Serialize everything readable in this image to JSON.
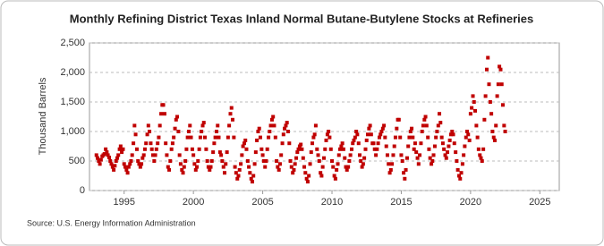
{
  "chart_data": {
    "type": "scatter",
    "title": "Monthly Refining District Texas Inland Normal Butane-Butylene Stocks at Refineries",
    "y_label": "Thousand Barrels",
    "source": "Source: U.S. Energy Information Administration",
    "color": "#c00000",
    "grid": true,
    "xlim": [
      1992.5,
      2026.4
    ],
    "ylim": [
      0,
      2500
    ],
    "xticks": [
      1995,
      2000,
      2005,
      2010,
      2015,
      2020,
      2025
    ],
    "yticks": [
      0,
      500,
      {
        "value": 1000,
        "label": "1,000"
      },
      {
        "value": 1500,
        "label": "1,500"
      },
      {
        "value": 2000,
        "label": "2,000"
      },
      {
        "value": 2500,
        "label": "2,500"
      }
    ],
    "x": [
      1993.0,
      1993.08,
      1993.17,
      1993.25,
      1993.33,
      1993.42,
      1993.5,
      1993.58,
      1993.67,
      1993.75,
      1993.83,
      1993.92,
      1994.0,
      1994.08,
      1994.17,
      1994.25,
      1994.33,
      1994.42,
      1994.5,
      1994.58,
      1994.67,
      1994.75,
      1994.83,
      1994.92,
      1995.0,
      1995.08,
      1995.17,
      1995.25,
      1995.33,
      1995.42,
      1995.5,
      1995.58,
      1995.67,
      1995.75,
      1995.83,
      1995.92,
      1996.0,
      1996.08,
      1996.17,
      1996.25,
      1996.33,
      1996.42,
      1996.5,
      1996.58,
      1996.67,
      1996.75,
      1996.83,
      1996.92,
      1997.0,
      1997.08,
      1997.17,
      1997.25,
      1997.33,
      1997.42,
      1997.5,
      1997.58,
      1997.67,
      1997.75,
      1997.83,
      1997.92,
      1998.0,
      1998.08,
      1998.17,
      1998.25,
      1998.33,
      1998.42,
      1998.5,
      1998.58,
      1998.67,
      1998.75,
      1998.83,
      1998.92,
      1999.0,
      1999.08,
      1999.17,
      1999.25,
      1999.33,
      1999.42,
      1999.5,
      1999.58,
      1999.67,
      1999.75,
      1999.83,
      1999.92,
      2000.0,
      2000.08,
      2000.17,
      2000.25,
      2000.33,
      2000.42,
      2000.5,
      2000.58,
      2000.67,
      2000.75,
      2000.83,
      2000.92,
      2001.0,
      2001.08,
      2001.17,
      2001.25,
      2001.33,
      2001.42,
      2001.5,
      2001.58,
      2001.67,
      2001.75,
      2001.83,
      2001.92,
      2002.0,
      2002.08,
      2002.17,
      2002.25,
      2002.33,
      2002.42,
      2002.5,
      2002.58,
      2002.67,
      2002.75,
      2002.83,
      2002.92,
      2003.0,
      2003.08,
      2003.17,
      2003.25,
      2003.33,
      2003.42,
      2003.5,
      2003.58,
      2003.67,
      2003.75,
      2003.83,
      2003.92,
      2004.0,
      2004.08,
      2004.17,
      2004.25,
      2004.33,
      2004.42,
      2004.5,
      2004.58,
      2004.67,
      2004.75,
      2004.83,
      2004.92,
      2005.0,
      2005.08,
      2005.17,
      2005.25,
      2005.33,
      2005.42,
      2005.5,
      2005.58,
      2005.67,
      2005.75,
      2005.83,
      2005.92,
      2006.0,
      2006.08,
      2006.17,
      2006.25,
      2006.33,
      2006.42,
      2006.5,
      2006.58,
      2006.67,
      2006.75,
      2006.83,
      2006.92,
      2007.0,
      2007.08,
      2007.17,
      2007.25,
      2007.33,
      2007.42,
      2007.5,
      2007.58,
      2007.67,
      2007.75,
      2007.83,
      2007.92,
      2008.0,
      2008.08,
      2008.17,
      2008.25,
      2008.33,
      2008.42,
      2008.5,
      2008.58,
      2008.67,
      2008.75,
      2008.83,
      2008.92,
      2009.0,
      2009.08,
      2009.17,
      2009.25,
      2009.33,
      2009.42,
      2009.5,
      2009.58,
      2009.67,
      2009.75,
      2009.83,
      2009.92,
      2010.0,
      2010.08,
      2010.17,
      2010.25,
      2010.33,
      2010.42,
      2010.5,
      2010.58,
      2010.67,
      2010.75,
      2010.83,
      2010.92,
      2011.0,
      2011.08,
      2011.17,
      2011.25,
      2011.33,
      2011.42,
      2011.5,
      2011.58,
      2011.67,
      2011.75,
      2011.83,
      2011.92,
      2012.0,
      2012.08,
      2012.17,
      2012.25,
      2012.33,
      2012.42,
      2012.5,
      2012.58,
      2012.67,
      2012.75,
      2012.83,
      2012.92,
      2013.0,
      2013.08,
      2013.17,
      2013.25,
      2013.33,
      2013.42,
      2013.5,
      2013.58,
      2013.67,
      2013.75,
      2013.83,
      2013.92,
      2014.0,
      2014.08,
      2014.17,
      2014.25,
      2014.33,
      2014.42,
      2014.5,
      2014.58,
      2014.67,
      2014.75,
      2014.83,
      2014.92,
      2015.0,
      2015.08,
      2015.17,
      2015.25,
      2015.33,
      2015.42,
      2015.5,
      2015.58,
      2015.67,
      2015.75,
      2015.83,
      2015.92,
      2016.0,
      2016.08,
      2016.17,
      2016.25,
      2016.33,
      2016.42,
      2016.5,
      2016.58,
      2016.67,
      2016.75,
      2016.83,
      2016.92,
      2017.0,
      2017.08,
      2017.17,
      2017.25,
      2017.33,
      2017.42,
      2017.5,
      2017.58,
      2017.67,
      2017.75,
      2017.83,
      2017.92,
      2018.0,
      2018.08,
      2018.17,
      2018.25,
      2018.33,
      2018.42,
      2018.5,
      2018.58,
      2018.67,
      2018.75,
      2018.83,
      2018.92,
      2019.0,
      2019.08,
      2019.17,
      2019.25,
      2019.33,
      2019.42,
      2019.5,
      2019.58,
      2019.67,
      2019.75,
      2019.83,
      2019.92,
      2020.0,
      2020.08,
      2020.17,
      2020.25,
      2020.33,
      2020.42,
      2020.5,
      2020.58,
      2020.67,
      2020.75,
      2020.83,
      2020.92,
      2021.0,
      2021.08,
      2021.17,
      2021.25,
      2021.33,
      2021.42,
      2021.5,
      2021.58,
      2021.67,
      2021.75,
      2021.83,
      2021.92,
      2022.0,
      2022.08,
      2022.17,
      2022.25,
      2022.33,
      2022.42,
      2022.5
    ],
    "values": [
      600,
      550,
      500,
      450,
      520,
      580,
      600,
      620,
      700,
      650,
      600,
      560,
      500,
      450,
      400,
      350,
      420,
      500,
      550,
      600,
      700,
      750,
      650,
      700,
      450,
      400,
      350,
      300,
      400,
      450,
      500,
      600,
      800,
      1100,
      950,
      700,
      500,
      450,
      400,
      450,
      550,
      600,
      700,
      800,
      950,
      1100,
      1000,
      800,
      700,
      600,
      500,
      600,
      700,
      800,
      900,
      1100,
      1300,
      1450,
      1450,
      1300,
      800,
      600,
      400,
      350,
      500,
      700,
      800,
      900,
      1050,
      1200,
      1250,
      1000,
      600,
      450,
      350,
      300,
      400,
      500,
      700,
      900,
      1000,
      1100,
      900,
      700,
      600,
      450,
      350,
      400,
      500,
      700,
      900,
      1000,
      1100,
      1150,
      900,
      700,
      500,
      400,
      350,
      400,
      500,
      650,
      800,
      900,
      1000,
      1100,
      900,
      650,
      600,
      500,
      400,
      300,
      450,
      650,
      900,
      1100,
      1300,
      1400,
      1200,
      900,
      400,
      300,
      200,
      250,
      350,
      450,
      600,
      750,
      800,
      850,
      700,
      500,
      400,
      300,
      200,
      150,
      250,
      450,
      650,
      850,
      1000,
      1050,
      900,
      700,
      600,
      500,
      400,
      500,
      700,
      900,
      1000,
      1100,
      1200,
      1250,
      1100,
      900,
      500,
      400,
      350,
      450,
      600,
      800,
      950,
      1050,
      1100,
      1150,
      1000,
      800,
      500,
      400,
      300,
      350,
      450,
      550,
      650,
      700,
      750,
      780,
      700,
      550,
      400,
      300,
      200,
      150,
      250,
      450,
      650,
      800,
      900,
      950,
      1100,
      700,
      600,
      500,
      300,
      250,
      400,
      550,
      700,
      850,
      950,
      1000,
      900,
      700,
      500,
      400,
      250,
      200,
      350,
      450,
      600,
      700,
      750,
      800,
      700,
      550,
      400,
      350,
      400,
      500,
      600,
      700,
      800,
      850,
      900,
      1000,
      950,
      800,
      600,
      500,
      400,
      450,
      550,
      700,
      850,
      950,
      1050,
      1100,
      950,
      800,
      800,
      700,
      600,
      700,
      800,
      900,
      950,
      1000,
      1050,
      1100,
      900,
      750,
      600,
      450,
      300,
      350,
      450,
      600,
      750,
      900,
      1050,
      1200,
      1200,
      900,
      600,
      500,
      300,
      200,
      350,
      550,
      750,
      900,
      1000,
      1050,
      900,
      700,
      800,
      650,
      550,
      450,
      600,
      800,
      1000,
      1100,
      1200,
      1250,
      1100,
      900,
      700,
      550,
      450,
      500,
      600,
      750,
      900,
      1000,
      1100,
      1300,
      1150,
      900,
      800,
      700,
      600,
      550,
      650,
      750,
      850,
      950,
      1000,
      950,
      800,
      650,
      500,
      350,
      250,
      200,
      300,
      450,
      600,
      750,
      900,
      1000,
      950,
      850,
      1300,
      1400,
      1600,
      1500,
      1350,
      1100,
      900,
      700,
      600,
      550,
      500,
      700,
      1200,
      1600,
      2050,
      2250,
      1800,
      1500,
      1300,
      1000,
      900,
      850,
      1100,
      1600,
      1800,
      2100,
      2050,
      1800,
      1450,
      1100,
      1000
    ]
  }
}
